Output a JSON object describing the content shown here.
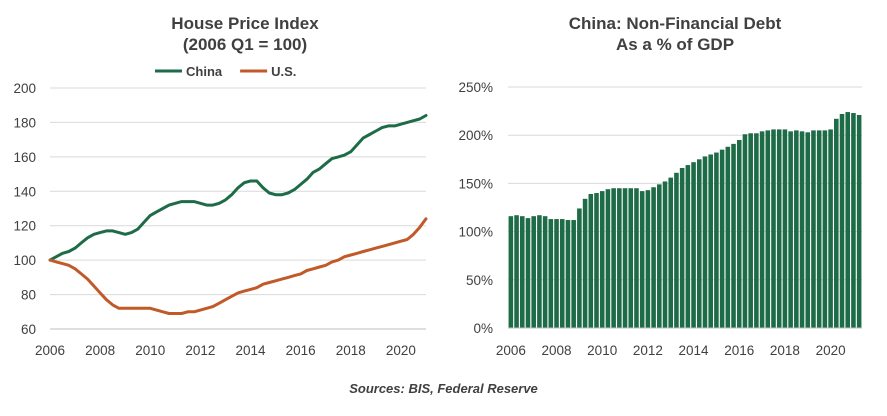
{
  "charts": {
    "left": {
      "title_line1": "House Price Index",
      "title_line2": "(2006 Q1 = 100)"
    },
    "right": {
      "title_line1": "China: Non-Financial Debt",
      "title_line2": "As a % of GDP"
    }
  },
  "source": "Sources: BIS, Federal Reserve",
  "chart_data": [
    {
      "type": "line",
      "title": "House Price Index",
      "subtitle": "(2006 Q1 = 100)",
      "xlabel": "",
      "ylabel": "",
      "xlim": [
        2006,
        2021
      ],
      "ylim": [
        60,
        200
      ],
      "x_ticks": [
        "2006",
        "2008",
        "2010",
        "2012",
        "2014",
        "2016",
        "2018",
        "2020"
      ],
      "y_ticks": [
        "60",
        "80",
        "100",
        "120",
        "140",
        "160",
        "180",
        "200"
      ],
      "grid": "horizontal",
      "legend_position": "top-center",
      "series": [
        {
          "name": "China",
          "color": "#1e6b47",
          "x": [
            2006.0,
            2006.25,
            2006.5,
            2006.75,
            2007.0,
            2007.25,
            2007.5,
            2007.75,
            2008.0,
            2008.25,
            2008.5,
            2008.75,
            2009.0,
            2009.25,
            2009.5,
            2009.75,
            2010.0,
            2010.25,
            2010.5,
            2010.75,
            2011.0,
            2011.25,
            2011.5,
            2011.75,
            2012.0,
            2012.25,
            2012.5,
            2012.75,
            2013.0,
            2013.25,
            2013.5,
            2013.75,
            2014.0,
            2014.25,
            2014.5,
            2014.75,
            2015.0,
            2015.25,
            2015.5,
            2015.75,
            2016.0,
            2016.25,
            2016.5,
            2016.75,
            2017.0,
            2017.25,
            2017.5,
            2017.75,
            2018.0,
            2018.25,
            2018.5,
            2018.75,
            2019.0,
            2019.25,
            2019.5,
            2019.75,
            2020.0,
            2020.25,
            2020.5,
            2020.75,
            2021.0
          ],
          "values": [
            100,
            102,
            104,
            105,
            107,
            110,
            113,
            115,
            116,
            117,
            117,
            116,
            115,
            116,
            118,
            122,
            126,
            128,
            130,
            132,
            133,
            134,
            134,
            134,
            133,
            132,
            132,
            133,
            135,
            138,
            142,
            145,
            146,
            146,
            142,
            139,
            138,
            138,
            139,
            141,
            144,
            147,
            151,
            153,
            156,
            159,
            160,
            161,
            163,
            167,
            171,
            173,
            175,
            177,
            178,
            178,
            179,
            180,
            181,
            182,
            184
          ]
        },
        {
          "name": "U.S.",
          "color": "#c05a28",
          "x": [
            2006.0,
            2006.25,
            2006.5,
            2006.75,
            2007.0,
            2007.25,
            2007.5,
            2007.75,
            2008.0,
            2008.25,
            2008.5,
            2008.75,
            2009.0,
            2009.25,
            2009.5,
            2009.75,
            2010.0,
            2010.25,
            2010.5,
            2010.75,
            2011.0,
            2011.25,
            2011.5,
            2011.75,
            2012.0,
            2012.25,
            2012.5,
            2012.75,
            2013.0,
            2013.25,
            2013.5,
            2013.75,
            2014.0,
            2014.25,
            2014.5,
            2014.75,
            2015.0,
            2015.25,
            2015.5,
            2015.75,
            2016.0,
            2016.25,
            2016.5,
            2016.75,
            2017.0,
            2017.25,
            2017.5,
            2017.75,
            2018.0,
            2018.25,
            2018.5,
            2018.75,
            2019.0,
            2019.25,
            2019.5,
            2019.75,
            2020.0,
            2020.25,
            2020.5,
            2020.75,
            2021.0
          ],
          "values": [
            100,
            99,
            98,
            97,
            95,
            92,
            89,
            85,
            81,
            77,
            74,
            72,
            72,
            72,
            72,
            72,
            72,
            71,
            70,
            69,
            69,
            69,
            70,
            70,
            71,
            72,
            73,
            75,
            77,
            79,
            81,
            82,
            83,
            84,
            86,
            87,
            88,
            89,
            90,
            91,
            92,
            94,
            95,
            96,
            97,
            99,
            100,
            102,
            103,
            104,
            105,
            106,
            107,
            108,
            109,
            110,
            111,
            112,
            115,
            119,
            124
          ]
        }
      ]
    },
    {
      "type": "bar",
      "title": "China: Non-Financial Debt",
      "subtitle": "As a % of GDP",
      "xlabel": "",
      "ylabel": "",
      "ylim": [
        0,
        250
      ],
      "y_unit": "%",
      "x_ticks": [
        "2006",
        "2008",
        "2010",
        "2012",
        "2014",
        "2016",
        "2018",
        "2020"
      ],
      "y_ticks": [
        "0%",
        "50%",
        "100%",
        "150%",
        "200%",
        "250%"
      ],
      "grid": "horizontal",
      "color": "#1e6b47",
      "x_start": 2006.0,
      "x_step": 0.25,
      "values": [
        116,
        117,
        116,
        114,
        116,
        117,
        116,
        113,
        113,
        113,
        112,
        112,
        124,
        134,
        139,
        140,
        142,
        144,
        145,
        145,
        145,
        145,
        145,
        142,
        143,
        146,
        149,
        152,
        156,
        161,
        166,
        169,
        172,
        175,
        178,
        180,
        182,
        185,
        188,
        191,
        195,
        201,
        202,
        202,
        204,
        205,
        206,
        206,
        206,
        204,
        205,
        204,
        203,
        205,
        205,
        205,
        206,
        217,
        222,
        224,
        223,
        221
      ]
    }
  ]
}
